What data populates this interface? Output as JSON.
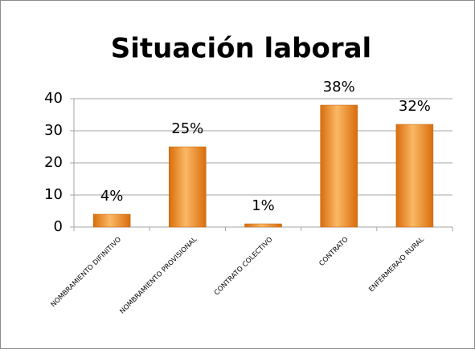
{
  "chart_data": {
    "type": "bar",
    "title": "Situación laboral",
    "categories": [
      "NOMBRAMIENTO DIFINITIVO",
      "NOMBRAMIENTO PROVISIONAL",
      "CONTRATO COLECTIVO",
      "CONTRATO",
      "ENFERMERA/O RURAL"
    ],
    "values": [
      4,
      25,
      1,
      38,
      32
    ],
    "value_labels": [
      "4%",
      "25%",
      "1%",
      "38%",
      "32%"
    ],
    "color": "#f79646",
    "ylim": [
      0,
      40
    ],
    "yticks": [
      0,
      10,
      20,
      30,
      40
    ],
    "grid": true
  }
}
